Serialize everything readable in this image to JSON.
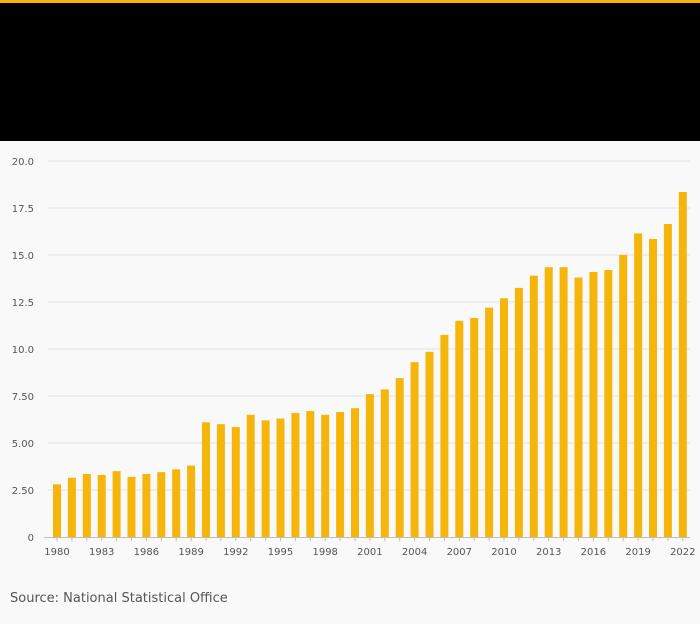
{
  "header": {
    "background_color": "#000000",
    "accent_color": "#f5b50a"
  },
  "source_text": "Source: National Statistical Office",
  "chart_data": {
    "type": "bar",
    "title": "",
    "xlabel": "",
    "ylabel": "",
    "bar_color": "#f5b50a",
    "grid": true,
    "ylim": [
      0,
      20
    ],
    "y_ticks": [
      0,
      2.5,
      5,
      7.5,
      10,
      12.5,
      15,
      17.5,
      20
    ],
    "y_tick_labels": [
      "0",
      "2.50",
      "5.00",
      "7.50",
      "10.0",
      "12.5",
      "15.0",
      "17.5",
      "20.0"
    ],
    "x_tick_labels": [
      "1980",
      "1983",
      "1986",
      "1989",
      "1992",
      "1995",
      "1998",
      "2001",
      "2004",
      "2007",
      "2010",
      "2013",
      "2016",
      "2019",
      "2022"
    ],
    "categories": [
      "1980",
      "1981",
      "1982",
      "1983",
      "1984",
      "1985",
      "1986",
      "1987",
      "1988",
      "1989",
      "1990",
      "1991",
      "1992",
      "1993",
      "1994",
      "1995",
      "1996",
      "1997",
      "1998",
      "1999",
      "2000",
      "2001",
      "2002",
      "2003",
      "2004",
      "2005",
      "2006",
      "2007",
      "2008",
      "2009",
      "2010",
      "2011",
      "2012",
      "2013",
      "2014",
      "2015",
      "2016",
      "2017",
      "2018",
      "2019",
      "2020",
      "2021",
      "2022"
    ],
    "values": [
      2.8,
      3.15,
      3.35,
      3.3,
      3.5,
      3.2,
      3.35,
      3.45,
      3.6,
      3.8,
      6.1,
      6.0,
      5.85,
      6.5,
      6.2,
      6.3,
      6.6,
      6.7,
      6.5,
      6.65,
      6.85,
      7.6,
      7.85,
      8.45,
      9.3,
      9.85,
      10.75,
      11.5,
      11.65,
      12.2,
      12.7,
      13.25,
      13.9,
      14.35,
      14.35,
      13.8,
      14.1,
      14.2,
      15.0,
      16.15,
      15.85,
      16.65,
      18.35
    ]
  }
}
